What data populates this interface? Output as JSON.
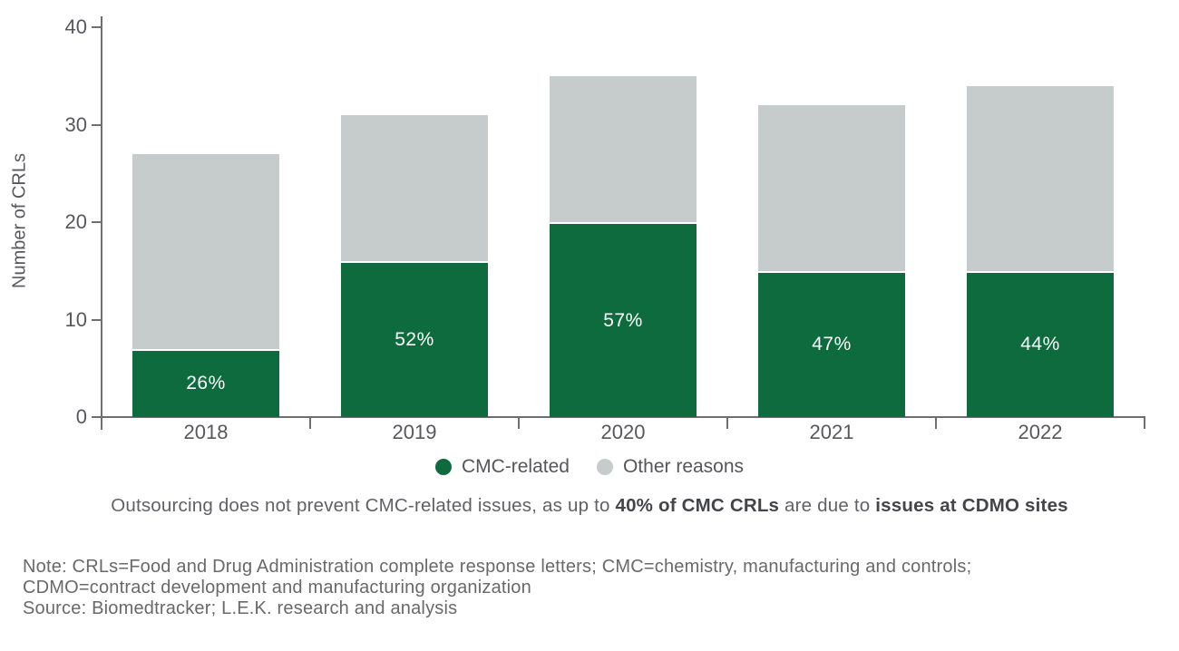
{
  "chart_data": {
    "type": "bar",
    "stacked": true,
    "categories": [
      "2018",
      "2019",
      "2020",
      "2021",
      "2022"
    ],
    "series": [
      {
        "name": "CMC-related",
        "color": "#0d6b3e",
        "values": [
          7,
          16,
          20,
          15,
          15
        ],
        "percent_labels": [
          "26%",
          "52%",
          "57%",
          "47%",
          "44%"
        ]
      },
      {
        "name": "Other reasons",
        "color": "#c6cccb",
        "values": [
          20,
          15,
          15,
          17,
          19
        ]
      }
    ],
    "totals": [
      27,
      31,
      35,
      32,
      34
    ],
    "title": "",
    "xlabel": "",
    "ylabel": "Number of CRLs",
    "ylim": [
      0,
      40
    ],
    "yticks": [
      "0",
      "10",
      "20",
      "30",
      "40"
    ],
    "grid": false,
    "legend_position": "bottom"
  },
  "legend": {
    "items": [
      {
        "label": "CMC-related",
        "color": "#0d6b3e"
      },
      {
        "label": "Other reasons",
        "color": "#c6cccb"
      }
    ]
  },
  "caption": {
    "segments": [
      {
        "text": "Outsourcing does not prevent CMC-related issues, as up to ",
        "bold": false
      },
      {
        "text": "40% of CMC CRLs",
        "bold": true
      },
      {
        "text": " are due to ",
        "bold": false
      },
      {
        "text": "issues at CDMO sites",
        "bold": true
      }
    ]
  },
  "footnotes": {
    "note_line1": "Note: CRLs=Food and Drug Administration complete response letters; CMC=chemistry, manufacturing and controls;",
    "note_line2": "CDMO=contract development and manufacturing organization",
    "source": "Source: Biomedtracker; L.E.K. research and analysis"
  },
  "colors": {
    "cmc_green": "#0d6b3e",
    "other_gray": "#c6cccb",
    "axis": "#6e6f71",
    "axis_text": "#57585c",
    "bar_label_text": "#ffffff"
  }
}
